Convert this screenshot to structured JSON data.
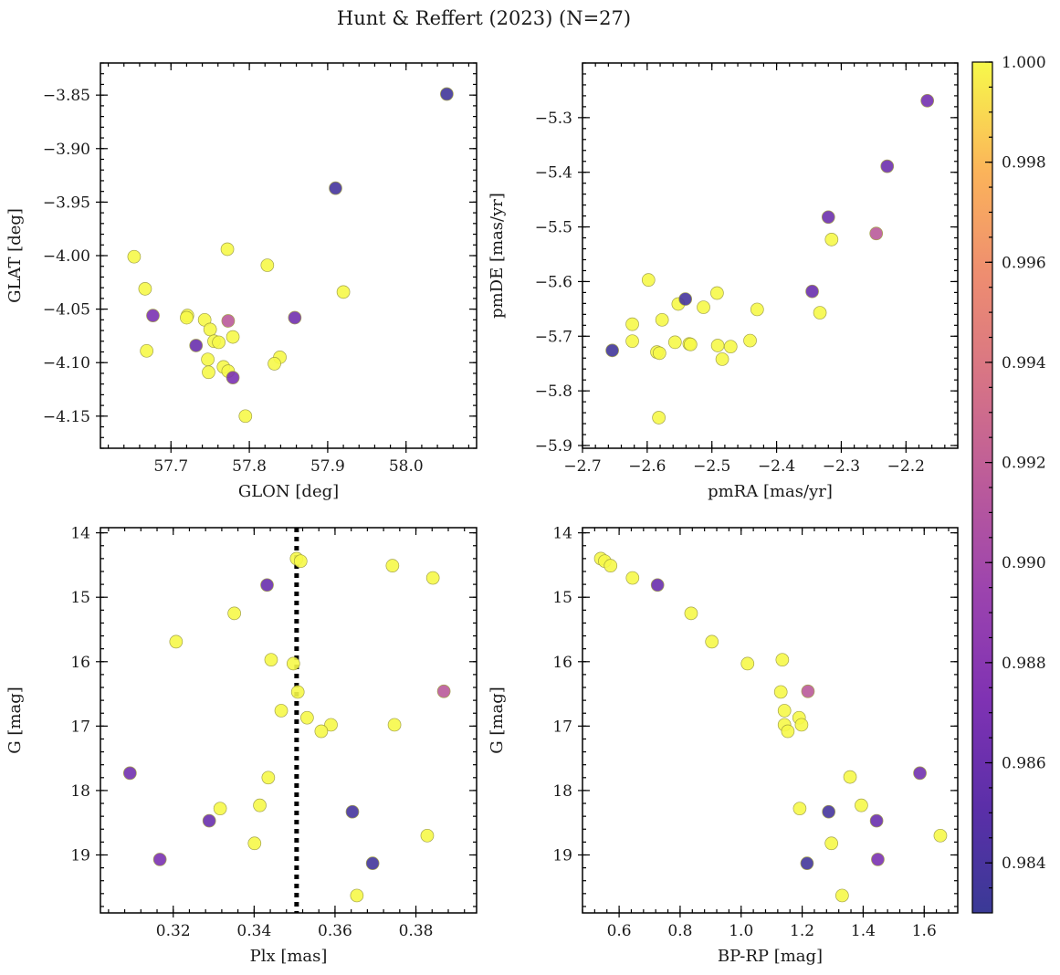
{
  "figure": {
    "title": "Hunt & Reffert (2023) (N=27)"
  },
  "colorbar": {
    "vmin": 0.983,
    "vmax": 1.0,
    "ticks": [
      0.984,
      0.986,
      0.988,
      0.99,
      0.992,
      0.994,
      0.996,
      0.998,
      1.0
    ],
    "tick_labels": [
      "0.984",
      "0.986",
      "0.988",
      "0.990",
      "0.992",
      "0.994",
      "0.996",
      "0.998",
      "1.000"
    ],
    "colormap": "plasma"
  },
  "chart_data": [
    {
      "type": "scatter",
      "id": "glon-glat",
      "xlabel": "GLON [deg]",
      "ylabel": "GLAT [deg]",
      "xlim": [
        57.61,
        58.09
      ],
      "ylim": [
        -4.18,
        -3.82
      ],
      "y_inverted": false,
      "xticks": [
        57.7,
        57.8,
        57.9,
        58.0
      ],
      "xtick_labels": [
        "57.7",
        "57.8",
        "57.9",
        "58.0"
      ],
      "yticks": [
        -3.85,
        -3.9,
        -3.95,
        -4.0,
        -4.05,
        -4.1,
        -4.15
      ],
      "ytick_labels": [
        "−3.85",
        "−3.90",
        "−3.95",
        "−4.00",
        "−4.05",
        "−4.10",
        "−4.15"
      ],
      "points": [
        [
          58.052,
          -3.849,
          0.9835
        ],
        [
          57.91,
          -3.937,
          0.9838
        ],
        [
          57.653,
          -4.001,
          1.0
        ],
        [
          57.772,
          -3.994,
          1.0
        ],
        [
          57.823,
          -4.009,
          1.0
        ],
        [
          57.92,
          -4.034,
          1.0
        ],
        [
          57.667,
          -4.031,
          1.0
        ],
        [
          57.677,
          -4.056,
          0.987
        ],
        [
          57.721,
          -4.056,
          1.0
        ],
        [
          57.72,
          -4.058,
          1.0
        ],
        [
          57.743,
          -4.06,
          1.0
        ],
        [
          57.773,
          -4.061,
          0.9915
        ],
        [
          57.858,
          -4.058,
          0.9865
        ],
        [
          57.669,
          -4.089,
          1.0
        ],
        [
          57.732,
          -4.084,
          0.986
        ],
        [
          57.75,
          -4.069,
          1.0
        ],
        [
          57.755,
          -4.08,
          1.0
        ],
        [
          57.761,
          -4.081,
          1.0
        ],
        [
          57.779,
          -4.076,
          1.0
        ],
        [
          57.747,
          -4.097,
          1.0
        ],
        [
          57.839,
          -4.095,
          1.0
        ],
        [
          57.832,
          -4.101,
          1.0
        ],
        [
          57.748,
          -4.109,
          1.0
        ],
        [
          57.767,
          -4.104,
          1.0
        ],
        [
          57.773,
          -4.108,
          1.0
        ],
        [
          57.779,
          -4.114,
          0.987
        ],
        [
          57.795,
          -4.15,
          1.0
        ]
      ]
    },
    {
      "type": "scatter",
      "id": "pmra-pmde",
      "xlabel": "pmRA [mas/yr]",
      "ylabel": "pmDE [mas/yr]",
      "xlim": [
        -2.7,
        -2.12
      ],
      "ylim": [
        -5.905,
        -5.2
      ],
      "y_inverted": false,
      "xticks": [
        -2.7,
        -2.6,
        -2.5,
        -2.4,
        -2.3,
        -2.2
      ],
      "xtick_labels": [
        "−2.7",
        "−2.6",
        "−2.5",
        "−2.4",
        "−2.3",
        "−2.2"
      ],
      "yticks": [
        -5.3,
        -5.4,
        -5.5,
        -5.6,
        -5.7,
        -5.8,
        -5.9
      ],
      "ytick_labels": [
        "−5.3",
        "−5.4",
        "−5.5",
        "−5.6",
        "−5.7",
        "−5.8",
        "−5.9"
      ],
      "points": [
        [
          -2.167,
          -5.269,
          0.9866
        ],
        [
          -2.229,
          -5.389,
          0.9862
        ],
        [
          -2.32,
          -5.482,
          0.9862
        ],
        [
          -2.246,
          -5.512,
          0.9915
        ],
        [
          -2.315,
          -5.523,
          1.0
        ],
        [
          -2.598,
          -5.597,
          1.0
        ],
        [
          -2.345,
          -5.618,
          0.986
        ],
        [
          -2.541,
          -5.632,
          0.9838
        ],
        [
          -2.552,
          -5.641,
          1.0
        ],
        [
          -2.492,
          -5.621,
          1.0
        ],
        [
          -2.513,
          -5.647,
          1.0
        ],
        [
          -2.43,
          -5.651,
          1.0
        ],
        [
          -2.333,
          -5.657,
          1.0
        ],
        [
          -2.577,
          -5.67,
          1.0
        ],
        [
          -2.623,
          -5.678,
          1.0
        ],
        [
          -2.654,
          -5.726,
          0.9835
        ],
        [
          -2.623,
          -5.709,
          1.0
        ],
        [
          -2.557,
          -5.711,
          1.0
        ],
        [
          -2.535,
          -5.714,
          1.0
        ],
        [
          -2.533,
          -5.715,
          1.0
        ],
        [
          -2.491,
          -5.717,
          1.0
        ],
        [
          -2.471,
          -5.719,
          1.0
        ],
        [
          -2.441,
          -5.708,
          1.0
        ],
        [
          -2.585,
          -5.729,
          1.0
        ],
        [
          -2.581,
          -5.731,
          1.0
        ],
        [
          -2.484,
          -5.742,
          1.0
        ],
        [
          -2.582,
          -5.849,
          1.0
        ]
      ]
    },
    {
      "type": "scatter",
      "id": "plx-g",
      "xlabel": "Plx [mas]",
      "ylabel": "G [mag]",
      "xlim": [
        0.302,
        0.395
      ],
      "ylim": [
        19.9,
        13.92
      ],
      "y_inverted": true,
      "xticks": [
        0.32,
        0.34,
        0.36,
        0.38
      ],
      "xtick_labels": [
        "0.32",
        "0.34",
        "0.36",
        "0.38"
      ],
      "yticks": [
        14,
        15,
        16,
        17,
        18,
        19
      ],
      "ytick_labels": [
        "14",
        "15",
        "16",
        "17",
        "18",
        "19"
      ],
      "vline": {
        "x": 0.3505,
        "style": "dotted"
      },
      "points": [
        [
          0.3505,
          14.4,
          1.0
        ],
        [
          0.3515,
          14.44,
          1.0
        ],
        [
          0.3742,
          14.51,
          1.0
        ],
        [
          0.3842,
          14.7,
          1.0
        ],
        [
          0.3432,
          14.81,
          0.986
        ],
        [
          0.3351,
          15.25,
          1.0
        ],
        [
          0.3207,
          15.69,
          1.0
        ],
        [
          0.3442,
          15.97,
          1.0
        ],
        [
          0.3497,
          16.03,
          1.0
        ],
        [
          0.3508,
          16.47,
          1.0
        ],
        [
          0.3869,
          16.46,
          0.9915
        ],
        [
          0.3467,
          16.76,
          1.0
        ],
        [
          0.3531,
          16.87,
          1.0
        ],
        [
          0.359,
          16.98,
          1.0
        ],
        [
          0.3747,
          16.98,
          1.0
        ],
        [
          0.3566,
          17.08,
          1.0
        ],
        [
          0.3093,
          17.73,
          0.9865
        ],
        [
          0.3435,
          17.8,
          1.0
        ],
        [
          0.3414,
          18.23,
          1.0
        ],
        [
          0.3316,
          18.28,
          1.0
        ],
        [
          0.3643,
          18.33,
          0.9838
        ],
        [
          0.3289,
          18.47,
          0.986
        ],
        [
          0.3828,
          18.7,
          1.0
        ],
        [
          0.3401,
          18.82,
          1.0
        ],
        [
          0.3167,
          19.07,
          0.987
        ],
        [
          0.3693,
          19.13,
          0.9836
        ],
        [
          0.3654,
          19.63,
          1.0
        ]
      ]
    },
    {
      "type": "scatter",
      "id": "bprp-g",
      "xlabel": "BP-RP [mag]",
      "ylabel": "G [mag]",
      "xlim": [
        0.48,
        1.71
      ],
      "ylim": [
        19.9,
        13.92
      ],
      "y_inverted": true,
      "xticks": [
        0.6,
        0.8,
        1.0,
        1.2,
        1.4,
        1.6
      ],
      "xtick_labels": [
        "0.6",
        "0.8",
        "1.0",
        "1.2",
        "1.4",
        "1.6"
      ],
      "yticks": [
        14,
        15,
        16,
        17,
        18,
        19
      ],
      "ytick_labels": [
        "14",
        "15",
        "16",
        "17",
        "18",
        "19"
      ],
      "points": [
        [
          0.54,
          14.4,
          1.0
        ],
        [
          0.553,
          14.44,
          1.0
        ],
        [
          0.572,
          14.51,
          1.0
        ],
        [
          0.644,
          14.7,
          1.0
        ],
        [
          0.726,
          14.81,
          0.986
        ],
        [
          0.836,
          15.25,
          1.0
        ],
        [
          0.904,
          15.69,
          1.0
        ],
        [
          1.021,
          16.03,
          1.0
        ],
        [
          1.135,
          15.97,
          1.0
        ],
        [
          1.13,
          16.47,
          1.0
        ],
        [
          1.219,
          16.46,
          0.9915
        ],
        [
          1.142,
          16.76,
          1.0
        ],
        [
          1.19,
          16.87,
          1.0
        ],
        [
          1.142,
          16.98,
          1.0
        ],
        [
          1.198,
          16.98,
          1.0
        ],
        [
          1.153,
          17.08,
          1.0
        ],
        [
          1.357,
          17.79,
          1.0
        ],
        [
          1.586,
          17.73,
          0.9865
        ],
        [
          1.394,
          18.23,
          1.0
        ],
        [
          1.192,
          18.28,
          1.0
        ],
        [
          1.287,
          18.33,
          0.9838
        ],
        [
          1.444,
          18.47,
          0.986
        ],
        [
          1.653,
          18.7,
          1.0
        ],
        [
          1.296,
          18.82,
          1.0
        ],
        [
          1.448,
          19.07,
          0.987
        ],
        [
          1.216,
          19.13,
          0.9836
        ],
        [
          1.331,
          19.63,
          1.0
        ]
      ]
    }
  ]
}
